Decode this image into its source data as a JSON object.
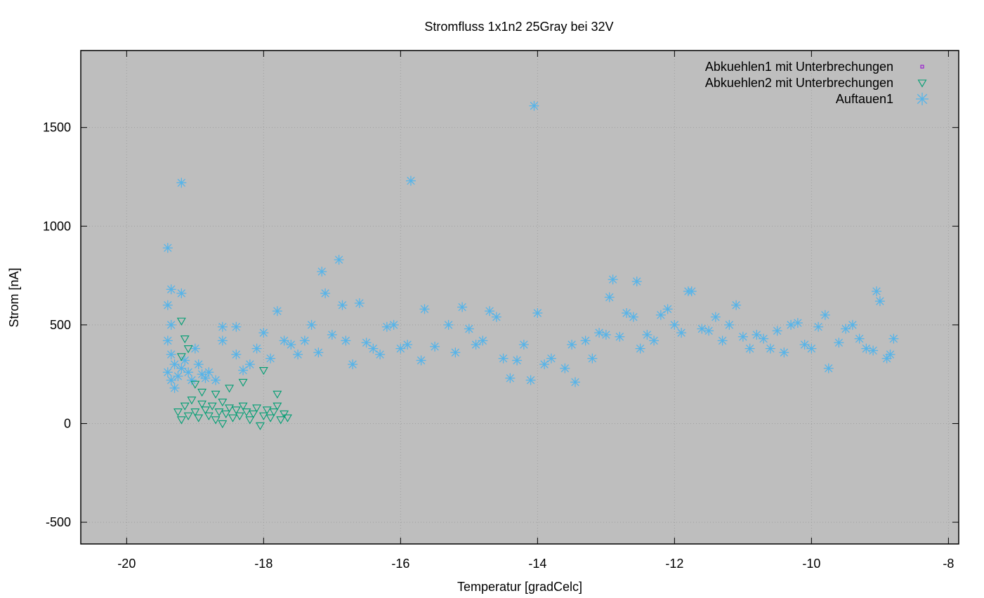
{
  "chart_data": {
    "type": "scatter",
    "title": "Stromfluss 1x1n2 25Gray bei 32V",
    "xlabel": "Temperatur [gradCelc]",
    "ylabel": "Strom [nA]",
    "xlim": [
      -20.67,
      -7.85
    ],
    "ylim": [
      -610,
      1890
    ],
    "xticks": [
      -20,
      -18,
      -16,
      -14,
      -12,
      -10,
      -8
    ],
    "yticks": [
      -500,
      0,
      500,
      1000,
      1500
    ],
    "xtick_labels": [
      "-20",
      "-18",
      "-16",
      "-14",
      "-12",
      "-10",
      "-8"
    ],
    "ytick_labels": [
      "-500",
      "0",
      "500",
      "1000",
      "1500"
    ],
    "grid": true,
    "legend_position": "top-right",
    "background_color": "#bebebe",
    "series": [
      {
        "name": "Abkuehlen1 mit Unterbrechungen",
        "marker": "square",
        "color": "#9400d3",
        "points": []
      },
      {
        "name": "Abkuehlen2 mit Unterbrechungen",
        "marker": "triangle-down",
        "color": "#009e73",
        "points": [
          [
            -19.2,
            520
          ],
          [
            -19.15,
            430
          ],
          [
            -19.1,
            380
          ],
          [
            -19.2,
            340
          ],
          [
            -19.25,
            60
          ],
          [
            -19.2,
            20
          ],
          [
            -19.15,
            90
          ],
          [
            -19.1,
            40
          ],
          [
            -19.05,
            120
          ],
          [
            -19.0,
            60
          ],
          [
            -18.95,
            30
          ],
          [
            -18.9,
            100
          ],
          [
            -18.85,
            70
          ],
          [
            -18.8,
            40
          ],
          [
            -18.75,
            90
          ],
          [
            -18.7,
            20
          ],
          [
            -18.65,
            60
          ],
          [
            -18.6,
            110
          ],
          [
            -18.55,
            50
          ],
          [
            -18.5,
            80
          ],
          [
            -18.45,
            30
          ],
          [
            -18.4,
            70
          ],
          [
            -18.35,
            40
          ],
          [
            -18.3,
            90
          ],
          [
            -18.25,
            60
          ],
          [
            -18.2,
            20
          ],
          [
            -18.15,
            50
          ],
          [
            -18.1,
            80
          ],
          [
            -18.05,
            -10
          ],
          [
            -18.0,
            40
          ],
          [
            -17.95,
            70
          ],
          [
            -17.9,
            30
          ],
          [
            -17.85,
            60
          ],
          [
            -17.8,
            90
          ],
          [
            -17.75,
            20
          ],
          [
            -17.7,
            50
          ],
          [
            -17.65,
            30
          ],
          [
            -18.7,
            150
          ],
          [
            -18.5,
            180
          ],
          [
            -18.3,
            210
          ],
          [
            -18.0,
            270
          ],
          [
            -17.8,
            150
          ],
          [
            -18.9,
            160
          ],
          [
            -19.0,
            200
          ],
          [
            -18.6,
            0
          ]
        ]
      },
      {
        "name": "Auftauen1",
        "marker": "star",
        "color": "#56b4e9",
        "points": [
          [
            -19.4,
            890
          ],
          [
            -19.2,
            1220
          ],
          [
            -19.35,
            680
          ],
          [
            -19.2,
            660
          ],
          [
            -19.4,
            600
          ],
          [
            -19.35,
            500
          ],
          [
            -19.4,
            420
          ],
          [
            -19.35,
            350
          ],
          [
            -19.3,
            300
          ],
          [
            -19.4,
            260
          ],
          [
            -19.35,
            220
          ],
          [
            -19.3,
            180
          ],
          [
            -19.25,
            240
          ],
          [
            -19.2,
            280
          ],
          [
            -19.15,
            320
          ],
          [
            -19.1,
            260
          ],
          [
            -19.05,
            220
          ],
          [
            -19.0,
            380
          ],
          [
            -18.95,
            300
          ],
          [
            -18.9,
            250
          ],
          [
            -18.85,
            230
          ],
          [
            -18.8,
            260
          ],
          [
            -18.7,
            220
          ],
          [
            -18.6,
            420
          ],
          [
            -18.6,
            490
          ],
          [
            -18.4,
            350
          ],
          [
            -18.4,
            490
          ],
          [
            -18.3,
            270
          ],
          [
            -18.2,
            300
          ],
          [
            -18.1,
            380
          ],
          [
            -18.0,
            460
          ],
          [
            -17.9,
            330
          ],
          [
            -17.8,
            570
          ],
          [
            -17.7,
            420
          ],
          [
            -17.6,
            400
          ],
          [
            -17.5,
            350
          ],
          [
            -17.4,
            420
          ],
          [
            -17.3,
            500
          ],
          [
            -17.2,
            360
          ],
          [
            -17.15,
            770
          ],
          [
            -17.1,
            660
          ],
          [
            -17.0,
            450
          ],
          [
            -16.9,
            830
          ],
          [
            -16.85,
            600
          ],
          [
            -16.8,
            420
          ],
          [
            -16.7,
            300
          ],
          [
            -16.6,
            610
          ],
          [
            -16.5,
            410
          ],
          [
            -16.4,
            380
          ],
          [
            -16.3,
            350
          ],
          [
            -16.2,
            490
          ],
          [
            -16.1,
            500
          ],
          [
            -16.0,
            380
          ],
          [
            -15.9,
            400
          ],
          [
            -15.85,
            1230
          ],
          [
            -15.7,
            320
          ],
          [
            -15.65,
            580
          ],
          [
            -15.5,
            390
          ],
          [
            -15.3,
            500
          ],
          [
            -15.2,
            360
          ],
          [
            -15.1,
            590
          ],
          [
            -15.0,
            480
          ],
          [
            -14.9,
            400
          ],
          [
            -14.8,
            420
          ],
          [
            -14.7,
            570
          ],
          [
            -14.6,
            540
          ],
          [
            -14.5,
            330
          ],
          [
            -14.4,
            230
          ],
          [
            -14.3,
            320
          ],
          [
            -14.2,
            400
          ],
          [
            -14.1,
            220
          ],
          [
            -14.05,
            1610
          ],
          [
            -14.0,
            560
          ],
          [
            -13.9,
            300
          ],
          [
            -13.8,
            330
          ],
          [
            -13.6,
            280
          ],
          [
            -13.5,
            400
          ],
          [
            -13.45,
            210
          ],
          [
            -13.3,
            420
          ],
          [
            -13.2,
            330
          ],
          [
            -13.1,
            460
          ],
          [
            -13.0,
            450
          ],
          [
            -12.95,
            640
          ],
          [
            -12.9,
            730
          ],
          [
            -12.8,
            440
          ],
          [
            -12.7,
            560
          ],
          [
            -12.6,
            540
          ],
          [
            -12.55,
            720
          ],
          [
            -12.5,
            380
          ],
          [
            -12.4,
            450
          ],
          [
            -12.3,
            420
          ],
          [
            -12.2,
            550
          ],
          [
            -12.1,
            580
          ],
          [
            -12.0,
            500
          ],
          [
            -11.9,
            460
          ],
          [
            -11.8,
            670
          ],
          [
            -11.75,
            670
          ],
          [
            -11.6,
            480
          ],
          [
            -11.5,
            470
          ],
          [
            -11.4,
            540
          ],
          [
            -11.3,
            420
          ],
          [
            -11.2,
            500
          ],
          [
            -11.1,
            600
          ],
          [
            -11.0,
            440
          ],
          [
            -10.9,
            380
          ],
          [
            -10.8,
            450
          ],
          [
            -10.7,
            430
          ],
          [
            -10.6,
            380
          ],
          [
            -10.5,
            470
          ],
          [
            -10.4,
            360
          ],
          [
            -10.3,
            500
          ],
          [
            -10.2,
            510
          ],
          [
            -10.1,
            400
          ],
          [
            -10.0,
            380
          ],
          [
            -9.9,
            490
          ],
          [
            -9.8,
            550
          ],
          [
            -9.75,
            280
          ],
          [
            -9.6,
            410
          ],
          [
            -9.5,
            480
          ],
          [
            -9.4,
            500
          ],
          [
            -9.3,
            430
          ],
          [
            -9.2,
            380
          ],
          [
            -9.1,
            370
          ],
          [
            -9.05,
            670
          ],
          [
            -9.0,
            620
          ],
          [
            -8.9,
            330
          ],
          [
            -8.85,
            350
          ],
          [
            -8.8,
            430
          ]
        ]
      }
    ]
  }
}
